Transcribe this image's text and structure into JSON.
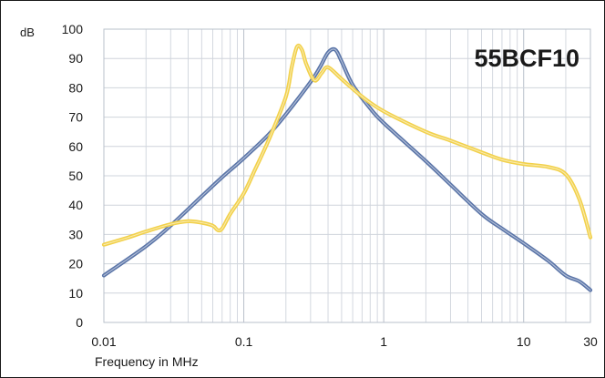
{
  "chart_data": {
    "type": "line",
    "title": "55BCF10",
    "xlabel": "Frequency in MHz",
    "ylabel": "dB",
    "x_scale": "log",
    "xlim": [
      0.01,
      30
    ],
    "ylim": [
      0,
      100
    ],
    "x_ticks": [
      0.01,
      0.1,
      1,
      10,
      30
    ],
    "x_tick_labels": [
      "0.01",
      "0.1",
      "1",
      "10",
      "30"
    ],
    "y_ticks": [
      0,
      10,
      20,
      30,
      40,
      50,
      60,
      70,
      80,
      90,
      100
    ],
    "y_tick_labels": [
      "0",
      "10",
      "20",
      "30",
      "40",
      "50",
      "60",
      "70",
      "80",
      "90",
      "100"
    ],
    "grid": true,
    "series": [
      {
        "color": "#5b75a8",
        "points": [
          [
            0.01,
            16
          ],
          [
            0.02,
            26
          ],
          [
            0.03,
            33
          ],
          [
            0.05,
            43
          ],
          [
            0.07,
            49.5
          ],
          [
            0.1,
            56
          ],
          [
            0.15,
            64
          ],
          [
            0.2,
            71
          ],
          [
            0.3,
            82
          ],
          [
            0.35,
            87
          ],
          [
            0.4,
            92
          ],
          [
            0.45,
            93
          ],
          [
            0.5,
            89
          ],
          [
            0.6,
            81
          ],
          [
            0.8,
            73
          ],
          [
            1,
            68
          ],
          [
            2,
            55
          ],
          [
            3,
            47
          ],
          [
            5,
            37
          ],
          [
            7,
            32
          ],
          [
            10,
            27
          ],
          [
            15,
            21
          ],
          [
            20,
            16
          ],
          [
            25,
            14
          ],
          [
            30,
            11
          ]
        ]
      },
      {
        "color": "#f2d14b",
        "points": [
          [
            0.01,
            26.5
          ],
          [
            0.015,
            29
          ],
          [
            0.02,
            31
          ],
          [
            0.03,
            33.5
          ],
          [
            0.04,
            34.5
          ],
          [
            0.05,
            34
          ],
          [
            0.06,
            33
          ],
          [
            0.065,
            31.5
          ],
          [
            0.07,
            32
          ],
          [
            0.08,
            37
          ],
          [
            0.1,
            44
          ],
          [
            0.12,
            52
          ],
          [
            0.15,
            62
          ],
          [
            0.2,
            77
          ],
          [
            0.22,
            87
          ],
          [
            0.24,
            94
          ],
          [
            0.26,
            93
          ],
          [
            0.28,
            88
          ],
          [
            0.32,
            82.5
          ],
          [
            0.36,
            85
          ],
          [
            0.4,
            87
          ],
          [
            0.5,
            83
          ],
          [
            0.7,
            77
          ],
          [
            1,
            72
          ],
          [
            2,
            65
          ],
          [
            3,
            62
          ],
          [
            5,
            58
          ],
          [
            7,
            55.5
          ],
          [
            10,
            54
          ],
          [
            15,
            53
          ],
          [
            20,
            50.5
          ],
          [
            25,
            42
          ],
          [
            30,
            29
          ]
        ]
      }
    ]
  }
}
